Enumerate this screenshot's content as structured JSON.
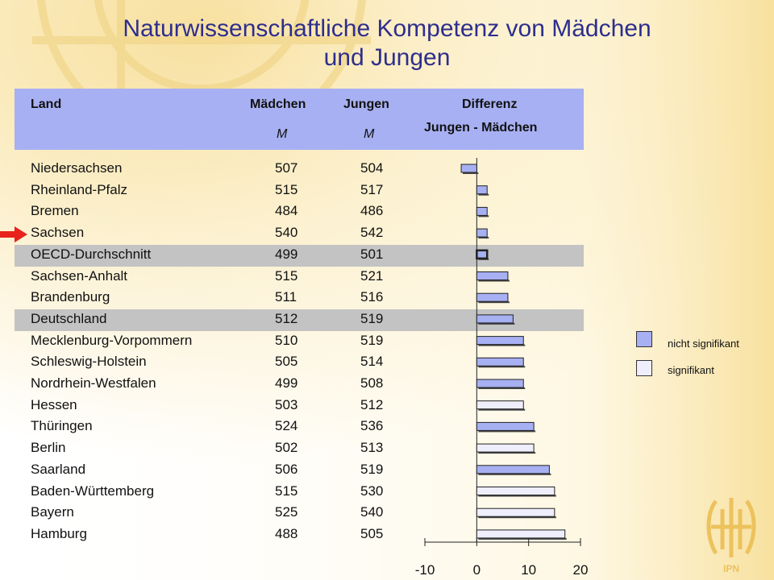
{
  "title_line1": "Naturwissenschaftliche Kompetenz von Mädchen",
  "title_line2": "und Jungen",
  "header": {
    "land": "Land",
    "maedchen": "Mädchen",
    "jungen": "Jungen",
    "maedchen_sub": "M",
    "jungen_sub": "M",
    "diff_line1": "Differenz",
    "diff_line2": "Jungen - Mädchen"
  },
  "legend": {
    "nicht_signifikant": "nicht signifikant",
    "signifikant": "signifikant"
  },
  "colors": {
    "header": "#a7b0f2",
    "highlight_row": "#c3c3c3",
    "bar_nicht_signifikant": "#a7b0f2",
    "bar_signifikant": "#eeeefc",
    "title": "#2e2e8c",
    "arrow": "#e8231b"
  },
  "icons": {
    "arrow": "arrow-right-icon",
    "logo": "ipn-logo"
  },
  "chart_data": {
    "type": "bar",
    "orientation": "horizontal",
    "xlim": [
      -10,
      20
    ],
    "xticks": [
      "-10",
      "0",
      "10",
      "20"
    ],
    "categories": [
      "Niedersachsen",
      "Rheinland-Pfalz",
      "Bremen",
      "Sachsen",
      "OECD-Durchschnitt",
      "Sachsen-Anhalt",
      "Brandenburg",
      "Deutschland",
      "Mecklenburg-Vorpommern",
      "Schleswig-Holstein",
      "Nordrhein-Westfalen",
      "Hessen",
      "Thüringen",
      "Berlin",
      "Saarland",
      "Baden-Württemberg",
      "Bayern",
      "Hamburg"
    ],
    "maedchen": [
      "507",
      "515",
      "484",
      "540",
      "499",
      "515",
      "511",
      "512",
      "510",
      "505",
      "499",
      "503",
      "524",
      "502",
      "506",
      "515",
      "525",
      "488"
    ],
    "jungen": [
      "504",
      "517",
      "486",
      "542",
      "501",
      "521",
      "516",
      "519",
      "519",
      "514",
      "508",
      "512",
      "536",
      "513",
      "519",
      "530",
      "540",
      "505"
    ],
    "values": [
      -3,
      2,
      2,
      2,
      2,
      6,
      6,
      7,
      9,
      9,
      9,
      9,
      11,
      11,
      14,
      15,
      15,
      17
    ],
    "significant": [
      false,
      false,
      false,
      false,
      false,
      false,
      false,
      false,
      false,
      false,
      false,
      true,
      false,
      true,
      false,
      true,
      true,
      true
    ],
    "highlighted_rows": [
      "OECD-Durchschnitt",
      "Deutschland"
    ],
    "marked_row": "Sachsen"
  }
}
